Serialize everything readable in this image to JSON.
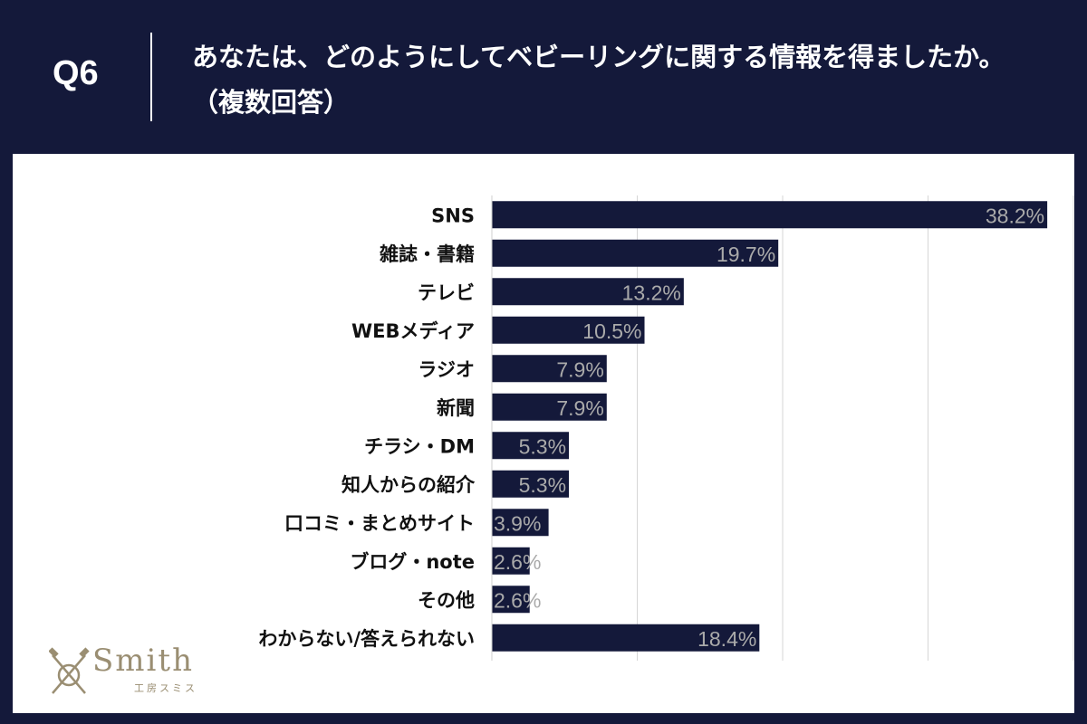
{
  "header": {
    "question_number": "Q6",
    "question_text": "あなたは、どのようにしてベビーリングに関する情報を得ましたか。（複数回答）"
  },
  "logo": {
    "wordmark": "Smith",
    "subtitle": "工房スミス"
  },
  "colors": {
    "background": "#14193a",
    "bar": "#14193a",
    "panel": "#ffffff",
    "label_text": "#aaaaaa"
  },
  "chart_data": {
    "type": "bar",
    "orientation": "horizontal",
    "title": "",
    "xlabel": "",
    "ylabel": "",
    "xlim": [
      0,
      40
    ],
    "grid": true,
    "value_suffix": "%",
    "categories": [
      "SNS",
      "雑誌・書籍",
      "テレビ",
      "WEBメディア",
      "ラジオ",
      "新聞",
      "チラシ・DM",
      "知人からの紹介",
      "口コミ・まとめサイト",
      "ブログ・note",
      "その他",
      "わからない/答えられない"
    ],
    "values": [
      38.2,
      19.7,
      13.2,
      10.5,
      7.9,
      7.9,
      5.3,
      5.3,
      3.9,
      2.6,
      2.6,
      18.4
    ],
    "value_labels": [
      "38.2%",
      "19.7%",
      "13.2%",
      "10.5%",
      "7.9%",
      "7.9%",
      "5.3%",
      "5.3%",
      "3.9%",
      "2.6%",
      "2.6%",
      "18.4%"
    ]
  }
}
